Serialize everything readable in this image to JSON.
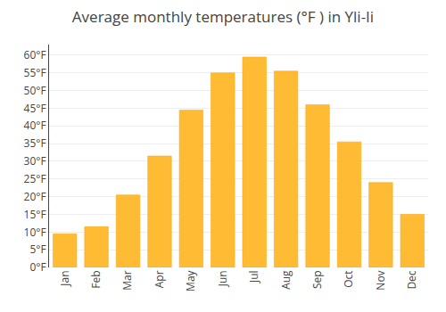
{
  "chart_data": {
    "type": "bar",
    "title": "Average monthly temperatures (°F ) in Yli-Ii",
    "categories": [
      "Jan",
      "Feb",
      "Mar",
      "Apr",
      "May",
      "Jun",
      "Jul",
      "Aug",
      "Sep",
      "Oct",
      "Nov",
      "Dec"
    ],
    "values": [
      9.5,
      11.5,
      20.5,
      31.5,
      44.5,
      55.0,
      59.5,
      55.5,
      46.0,
      35.5,
      24.0,
      15.0
    ],
    "color": "#FFBB33",
    "ylim": [
      0,
      63
    ],
    "yticks": [
      {
        "value": 0,
        "label": "0°F"
      },
      {
        "value": 5,
        "label": "5°F"
      },
      {
        "value": 10,
        "label": "10°F"
      },
      {
        "value": 15,
        "label": "15°F"
      },
      {
        "value": 20,
        "label": "20°F"
      },
      {
        "value": 25,
        "label": "25°F"
      },
      {
        "value": 30,
        "label": "30°F"
      },
      {
        "value": 35,
        "label": "35°F"
      },
      {
        "value": 40,
        "label": "40°F"
      },
      {
        "value": 45,
        "label": "45°F"
      },
      {
        "value": 50,
        "label": "50°F"
      },
      {
        "value": 55,
        "label": "55°F"
      },
      {
        "value": 60,
        "label": "60°F"
      }
    ],
    "grid": true
  }
}
